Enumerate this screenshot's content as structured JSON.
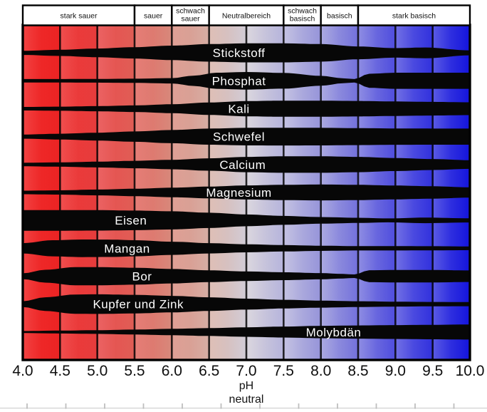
{
  "header_zones": [
    {
      "label_lines": [
        "stark sauer"
      ],
      "ph_from": 4.0,
      "ph_to": 5.5
    },
    {
      "label_lines": [
        "sauer"
      ],
      "ph_from": 5.5,
      "ph_to": 6.0
    },
    {
      "label_lines": [
        "schwach",
        "sauer"
      ],
      "ph_from": 6.0,
      "ph_to": 6.5
    },
    {
      "label_lines": [
        "Neutralbereich"
      ],
      "ph_from": 6.5,
      "ph_to": 7.5
    },
    {
      "label_lines": [
        "schwach",
        "basisch"
      ],
      "ph_from": 7.5,
      "ph_to": 8.0
    },
    {
      "label_lines": [
        "basisch"
      ],
      "ph_from": 8.0,
      "ph_to": 8.5
    },
    {
      "label_lines": [
        "stark basisch"
      ],
      "ph_from": 8.5,
      "ph_to": 10.0
    }
  ],
  "axis": {
    "tick_labels": [
      "4.0",
      "4.5",
      "5.0",
      "5.5",
      "6.0",
      "6.5",
      "7.0",
      "7.5",
      "8.0",
      "8.5",
      "9.0",
      "9.5",
      "10.0"
    ],
    "title_line1": "pH",
    "title_line2": "neutral"
  },
  "colors": {
    "background": "#ffffff",
    "band": "#070707",
    "grid_line": "#000000",
    "chart_border": "#000000",
    "header_fill": "#ffffff",
    "header_border": "#000000",
    "header_text": "#111111",
    "tick_text": "#0e0e0e",
    "band_label_text": "#ffffff",
    "ruler": "#b8b8b8",
    "gradient_stops": [
      [
        "0.00",
        "#ee1414"
      ],
      [
        "0.09",
        "#ec2525"
      ],
      [
        "0.17",
        "#e63e3e"
      ],
      [
        "0.25",
        "#e05e56"
      ],
      [
        "0.33",
        "#d8877a"
      ],
      [
        "0.42",
        "#d6b0a6"
      ],
      [
        "0.50",
        "#d2cdd7"
      ],
      [
        "0.58",
        "#b7b5dc"
      ],
      [
        "0.67",
        "#9593da"
      ],
      [
        "0.75",
        "#7371dc"
      ],
      [
        "0.83",
        "#504ede"
      ],
      [
        "0.92",
        "#3030de"
      ],
      [
        "1.00",
        "#1414dd"
      ]
    ]
  },
  "chart_data": {
    "type": "area",
    "title": "",
    "xlabel": "pH",
    "x_range": [
      4.0,
      10.0
    ],
    "x_tick_step": 0.5,
    "value_meaning": "relative availability (band thickness, 0 = none, 1 = maximum)",
    "grid": true,
    "series": [
      {
        "name": "Stickstoff",
        "label_ph": 6.9,
        "points": [
          [
            4,
            0.2
          ],
          [
            4.5,
            0.3
          ],
          [
            5,
            0.42
          ],
          [
            5.5,
            0.55
          ],
          [
            6,
            0.7
          ],
          [
            6.5,
            0.85
          ],
          [
            7,
            0.92
          ],
          [
            7.5,
            0.92
          ],
          [
            8,
            0.85
          ],
          [
            8.5,
            0.62
          ],
          [
            9,
            0.46
          ],
          [
            9.4,
            0.52
          ],
          [
            10,
            0.24
          ]
        ]
      },
      {
        "name": "Phosphat",
        "label_ph": 6.9,
        "points": [
          [
            4,
            0.17
          ],
          [
            4.5,
            0.17
          ],
          [
            5,
            0.18
          ],
          [
            5.5,
            0.2
          ],
          [
            6,
            0.26
          ],
          [
            6.3,
            0.5
          ],
          [
            6.6,
            0.78
          ],
          [
            7,
            0.85
          ],
          [
            7.5,
            0.76
          ],
          [
            8,
            0.48
          ],
          [
            8.3,
            0.24
          ],
          [
            8.45,
            0.17
          ],
          [
            8.65,
            0.68
          ],
          [
            9,
            0.78
          ],
          [
            9.5,
            0.78
          ],
          [
            10,
            0.78
          ]
        ]
      },
      {
        "name": "Kali",
        "label_ph": 6.9,
        "points": [
          [
            4,
            0.17
          ],
          [
            4.5,
            0.2
          ],
          [
            5,
            0.25
          ],
          [
            5.5,
            0.32
          ],
          [
            6,
            0.43
          ],
          [
            6.5,
            0.6
          ],
          [
            7,
            0.74
          ],
          [
            7.5,
            0.78
          ],
          [
            8,
            0.78
          ],
          [
            8.5,
            0.75
          ],
          [
            9,
            0.7
          ],
          [
            9.5,
            0.66
          ],
          [
            10,
            0.62
          ]
        ]
      },
      {
        "name": "Schwefel",
        "label_ph": 6.9,
        "points": [
          [
            4,
            0.2
          ],
          [
            4.5,
            0.28
          ],
          [
            5,
            0.38
          ],
          [
            5.5,
            0.5
          ],
          [
            6,
            0.64
          ],
          [
            6.5,
            0.78
          ],
          [
            7,
            0.85
          ],
          [
            7.5,
            0.86
          ],
          [
            8,
            0.85
          ],
          [
            8.5,
            0.82
          ],
          [
            9,
            0.79
          ],
          [
            9.5,
            0.78
          ],
          [
            10,
            0.78
          ]
        ]
      },
      {
        "name": "Calcium",
        "label_ph": 6.95,
        "points": [
          [
            4,
            0.17
          ],
          [
            4.5,
            0.21
          ],
          [
            5,
            0.28
          ],
          [
            5.5,
            0.36
          ],
          [
            6,
            0.46
          ],
          [
            6.5,
            0.6
          ],
          [
            7,
            0.74
          ],
          [
            7.5,
            0.8
          ],
          [
            8,
            0.8
          ],
          [
            8.5,
            0.74
          ],
          [
            9,
            0.63
          ],
          [
            9.5,
            0.53
          ],
          [
            10,
            0.42
          ]
        ]
      },
      {
        "name": "Magnesium",
        "label_ph": 6.9,
        "points": [
          [
            4,
            0.17
          ],
          [
            4.5,
            0.21
          ],
          [
            5,
            0.28
          ],
          [
            5.5,
            0.36
          ],
          [
            6,
            0.46
          ],
          [
            6.5,
            0.57
          ],
          [
            7,
            0.68
          ],
          [
            7.5,
            0.74
          ],
          [
            8,
            0.77
          ],
          [
            8.5,
            0.74
          ],
          [
            9,
            0.67
          ],
          [
            9.5,
            0.6
          ],
          [
            10,
            0.5
          ]
        ]
      },
      {
        "name": "Eisen",
        "label_ph": 5.45,
        "points": [
          [
            4,
            1.0
          ],
          [
            4.5,
            1.0
          ],
          [
            5,
            0.99
          ],
          [
            5.5,
            0.95
          ],
          [
            6,
            0.88
          ],
          [
            6.5,
            0.74
          ],
          [
            7,
            0.57
          ],
          [
            7.5,
            0.43
          ],
          [
            8,
            0.32
          ],
          [
            8.5,
            0.25
          ],
          [
            8.9,
            0.19
          ],
          [
            9.4,
            0.27
          ],
          [
            10,
            0.2
          ]
        ]
      },
      {
        "name": "Mangan",
        "label_ph": 5.4,
        "points": [
          [
            4,
            0.5
          ],
          [
            4.4,
            0.78
          ],
          [
            4.8,
            0.85
          ],
          [
            5.2,
            0.84
          ],
          [
            5.5,
            0.78
          ],
          [
            6,
            0.64
          ],
          [
            6.5,
            0.5
          ],
          [
            7,
            0.39
          ],
          [
            7.5,
            0.31
          ],
          [
            8,
            0.25
          ],
          [
            8.5,
            0.21
          ],
          [
            9,
            0.21
          ],
          [
            9.5,
            0.2
          ],
          [
            10,
            0.18
          ]
        ]
      },
      {
        "name": "Bor",
        "label_ph": 5.6,
        "points": [
          [
            4,
            0.28
          ],
          [
            4.3,
            0.62
          ],
          [
            4.7,
            0.88
          ],
          [
            5,
            0.88
          ],
          [
            5.5,
            0.82
          ],
          [
            6,
            0.7
          ],
          [
            6.5,
            0.57
          ],
          [
            7,
            0.46
          ],
          [
            7.5,
            0.38
          ],
          [
            8,
            0.3
          ],
          [
            8.3,
            0.22
          ],
          [
            8.45,
            0.17
          ],
          [
            8.65,
            0.58
          ],
          [
            9,
            0.6
          ],
          [
            9.5,
            0.6
          ],
          [
            10,
            0.56
          ]
        ]
      },
      {
        "name": "Kupfer und Zink",
        "label_ph": 5.55,
        "points": [
          [
            4,
            0.28
          ],
          [
            4.3,
            0.66
          ],
          [
            4.7,
            0.93
          ],
          [
            5,
            0.95
          ],
          [
            5.5,
            0.9
          ],
          [
            6,
            0.8
          ],
          [
            6.5,
            0.66
          ],
          [
            7,
            0.53
          ],
          [
            7.5,
            0.42
          ],
          [
            8,
            0.34
          ],
          [
            8.5,
            0.28
          ],
          [
            9,
            0.24
          ],
          [
            9.5,
            0.21
          ],
          [
            10,
            0.2
          ]
        ]
      },
      {
        "name": "Molybdän",
        "label_ph": 8.17,
        "points": [
          [
            4,
            0.1
          ],
          [
            4.5,
            0.14
          ],
          [
            5,
            0.18
          ],
          [
            5.5,
            0.24
          ],
          [
            6,
            0.31
          ],
          [
            6.5,
            0.38
          ],
          [
            7,
            0.46
          ],
          [
            7.5,
            0.53
          ],
          [
            8,
            0.6
          ],
          [
            8.5,
            0.64
          ],
          [
            9,
            0.67
          ],
          [
            9.5,
            0.7
          ],
          [
            10,
            0.73
          ]
        ]
      }
    ]
  }
}
